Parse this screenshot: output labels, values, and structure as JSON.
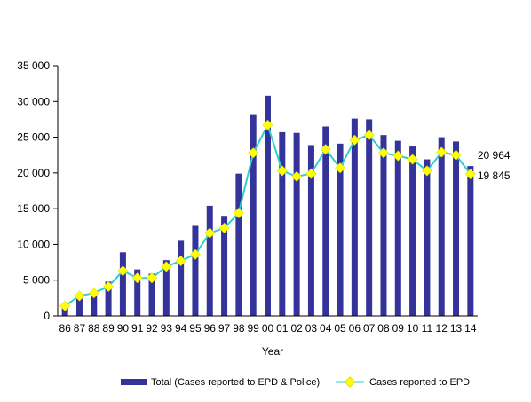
{
  "colors": {
    "bar": "#333399",
    "line": "#33CCCC",
    "marker": "#FFFF00",
    "marker_stroke": "#E0E000",
    "axis": "#000000"
  },
  "chart_data": {
    "type": "bar",
    "title": "",
    "xlabel": "Year",
    "ylabel": "",
    "ylim": [
      0,
      35000
    ],
    "yticks": [
      0,
      5000,
      10000,
      15000,
      20000,
      25000,
      30000,
      35000
    ],
    "ytick_labels": [
      "0",
      "5 000",
      "10 000",
      "15 000",
      "20 000",
      "25 000",
      "30 000",
      "35 000"
    ],
    "categories": [
      "86",
      "87",
      "88",
      "89",
      "90",
      "91",
      "92",
      "93",
      "94",
      "95",
      "96",
      "97",
      "98",
      "99",
      "00",
      "01",
      "02",
      "03",
      "04",
      "05",
      "06",
      "07",
      "08",
      "09",
      "10",
      "11",
      "12",
      "13",
      "14"
    ],
    "series": [
      {
        "name": "Total (Cases reported to EPD & Police)",
        "kind": "bar",
        "values": [
          1400,
          2500,
          3100,
          4800,
          8900,
          6500,
          5900,
          7800,
          10500,
          12600,
          15400,
          14000,
          19900,
          28100,
          30800,
          25700,
          25600,
          23900,
          26500,
          24100,
          27600,
          27500,
          25300,
          24500,
          23700,
          21900,
          25000,
          24400,
          20964
        ]
      },
      {
        "name": "Cases reported to EPD",
        "kind": "line",
        "values": [
          1400,
          2800,
          3200,
          4100,
          6300,
          5300,
          5300,
          6900,
          7700,
          8600,
          11600,
          12300,
          14400,
          22800,
          26700,
          20300,
          19500,
          19900,
          23300,
          20700,
          24600,
          25300,
          22800,
          22400,
          21900,
          20300,
          22900,
          22500,
          19845
        ]
      }
    ],
    "annotations": [
      {
        "text": "20 964",
        "series": 0,
        "index": 28
      },
      {
        "text": "19 845",
        "series": 1,
        "index": 28
      }
    ],
    "legend": "bottom",
    "grid": false
  }
}
